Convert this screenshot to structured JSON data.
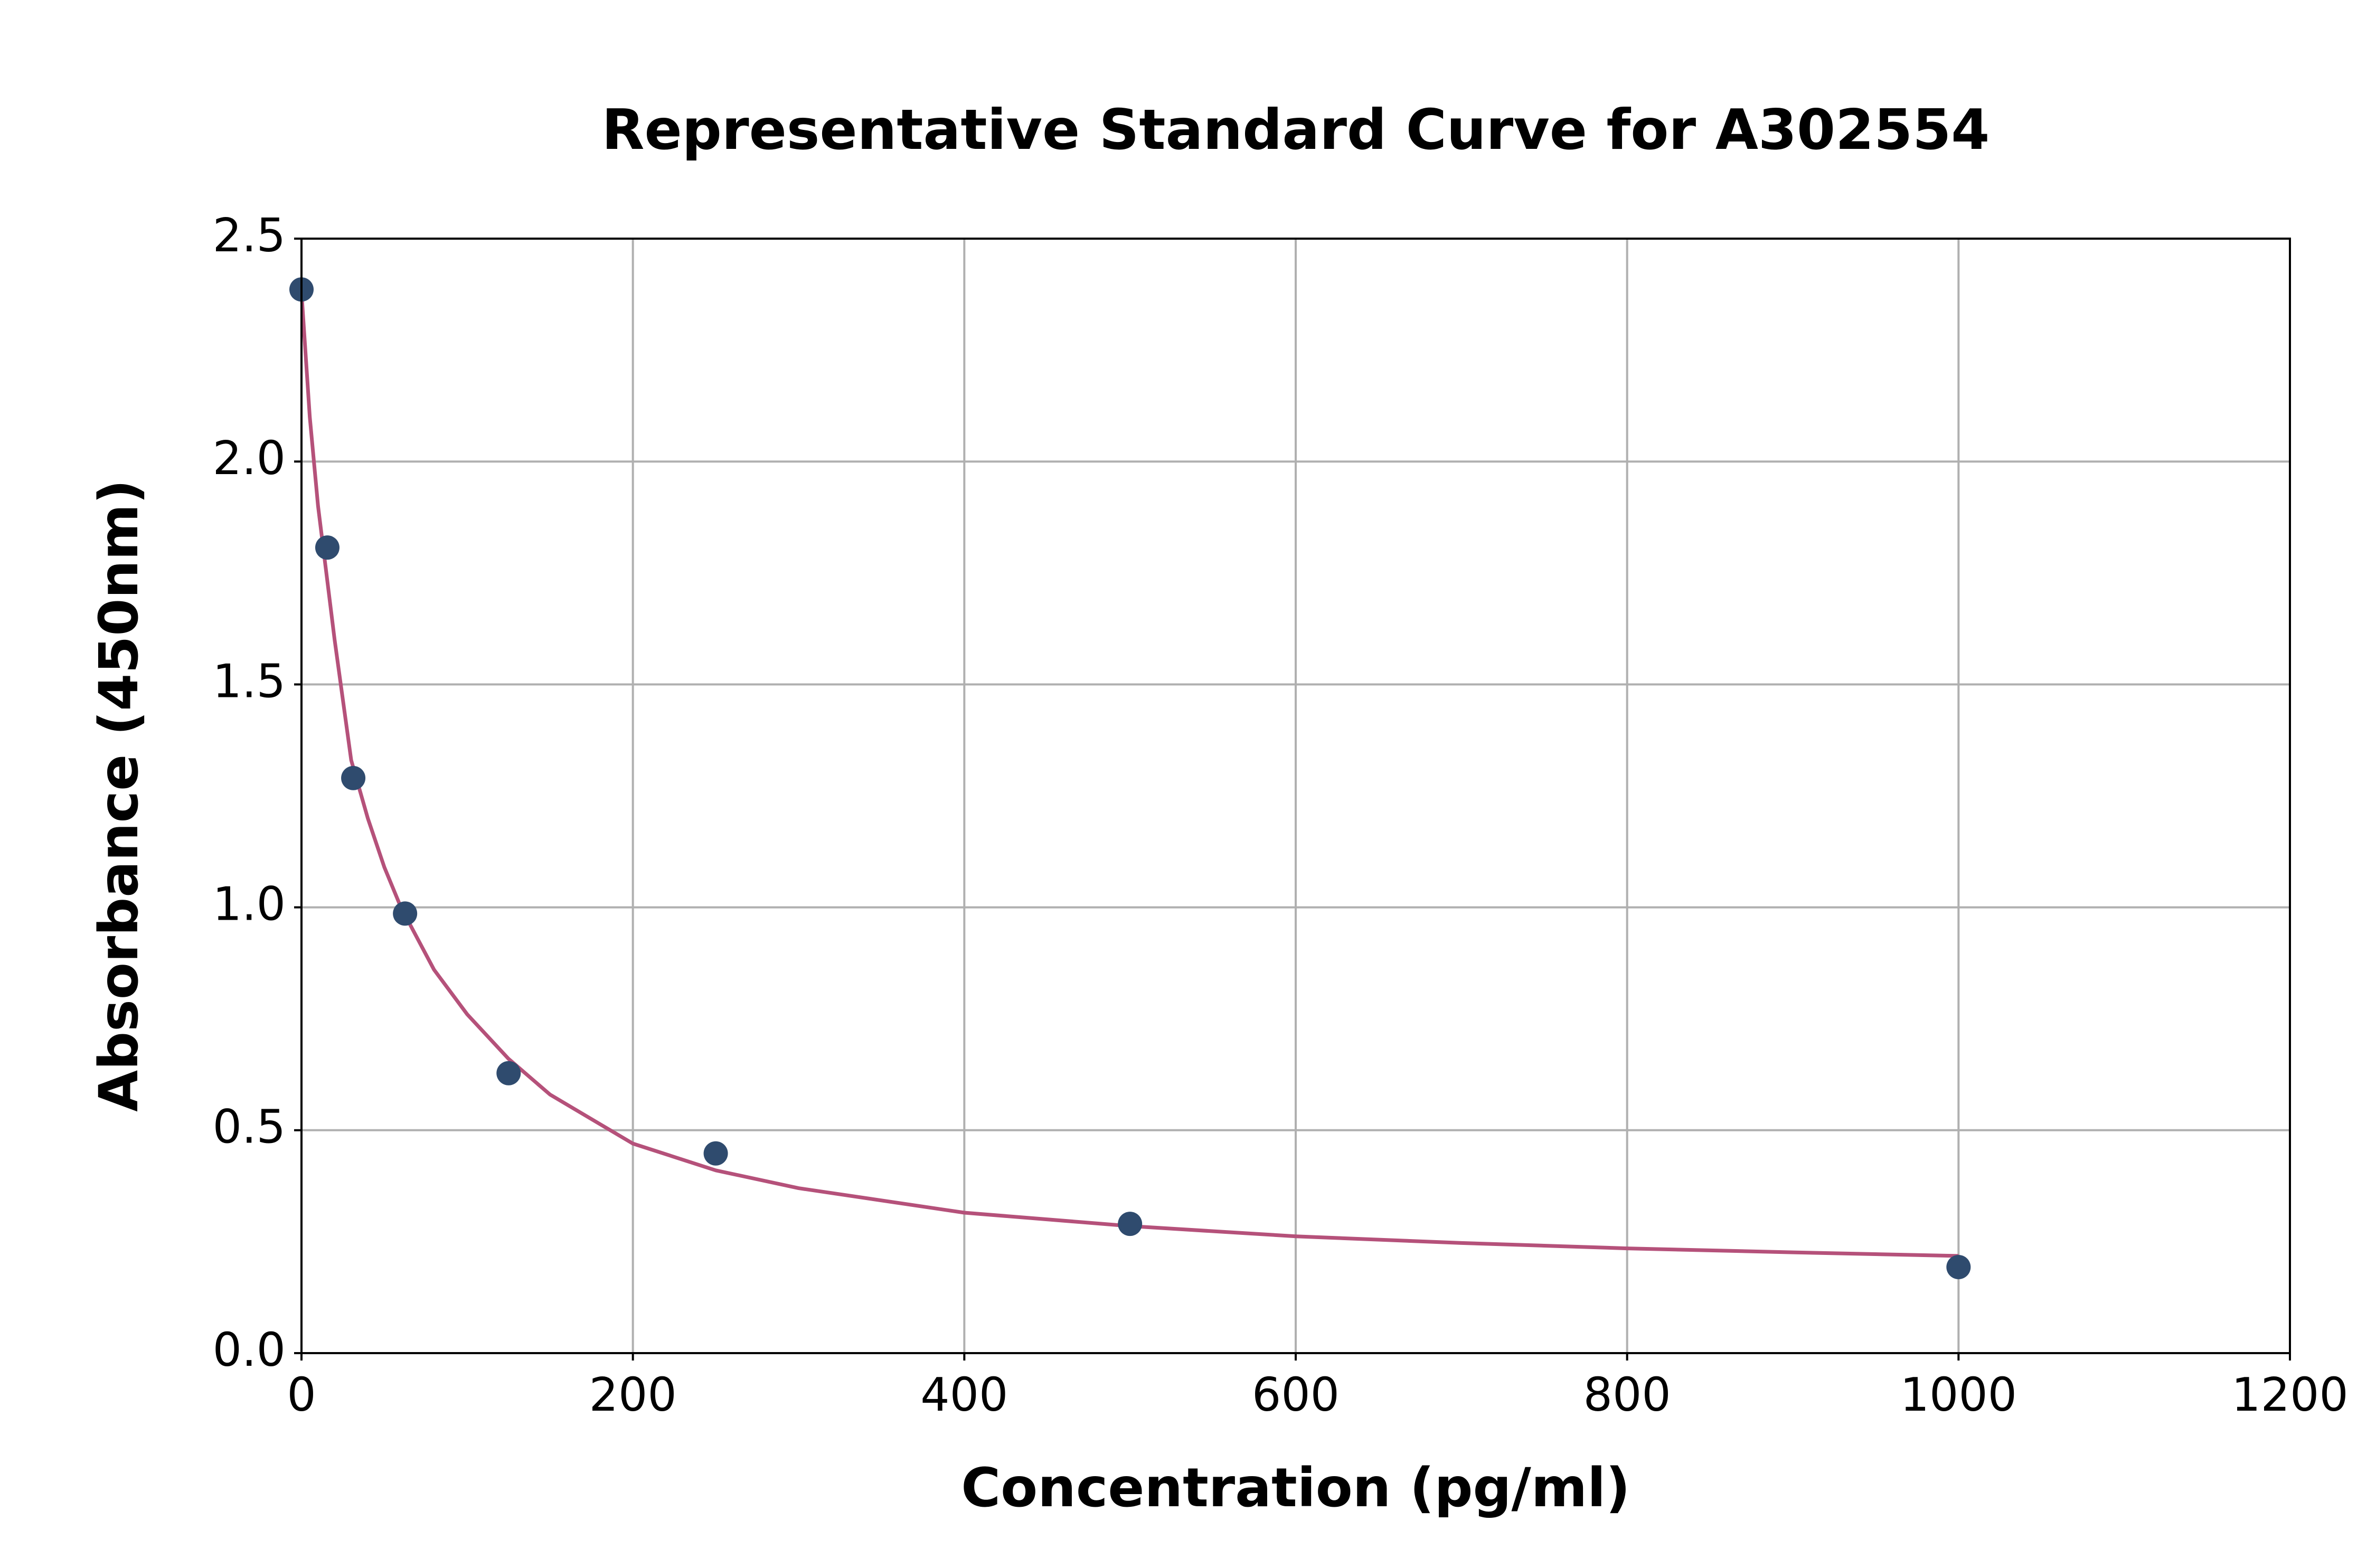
{
  "chart_data": {
    "type": "scatter",
    "title": "Representative Standard Curve for A302554",
    "x_label": "Concentration (pg/ml)",
    "y_label": "Absorbance (450nm)",
    "xlim": [
      0,
      1200
    ],
    "ylim": [
      0,
      2.5
    ],
    "xticks": [
      0,
      200,
      400,
      600,
      800,
      1000,
      1200
    ],
    "yticks": [
      {
        "value": 0,
        "label": "0.0"
      },
      0.5,
      {
        "value": 1,
        "label": "1.0"
      },
      1.5,
      {
        "value": 2,
        "label": "2.0"
      },
      2.5
    ],
    "grid": true,
    "series": [
      {
        "type": "scatter",
        "color": "#2f4b6e",
        "x": [
          0,
          15.6,
          31.25,
          62.5,
          125,
          250,
          500,
          1000
        ],
        "values": [
          2.386,
          1.807,
          1.29,
          0.986,
          0.628,
          0.448,
          0.29,
          0.193
        ]
      },
      {
        "type": "line",
        "color": "#b5517a",
        "x": [
          0,
          5,
          10,
          20,
          30,
          40,
          50,
          60,
          80,
          100,
          125,
          150,
          200,
          250,
          300,
          400,
          500,
          600,
          700,
          800,
          900,
          1000
        ],
        "values": [
          2.38,
          2.1,
          1.9,
          1.6,
          1.33,
          1.2,
          1.09,
          1.0,
          0.86,
          0.76,
          0.66,
          0.58,
          0.47,
          0.41,
          0.37,
          0.315,
          0.285,
          0.262,
          0.247,
          0.235,
          0.226,
          0.218
        ]
      }
    ]
  }
}
